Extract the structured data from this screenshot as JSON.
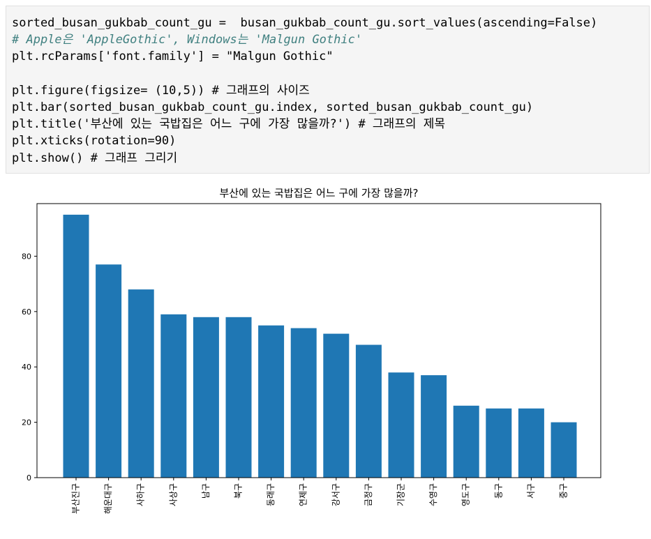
{
  "code_lines": [
    "sorted_busan_gukbab_count_gu =  busan_gukbab_count_gu.sort_values(ascending=False)",
    "# Apple은 'AppleGothic', Windows는 'Malgun Gothic'",
    "plt.rcParams['font.family'] = \"Malgun Gothic\"",
    "",
    "plt.figure(figsize= (10,5)) # 그래프의 사이즈",
    "plt.bar(sorted_busan_gukbab_count_gu.index, sorted_busan_gukbab_count_gu)",
    "plt.title('부산에 있는 국밥집은 어느 구에 가장 많을까?') # 그래프의 제목",
    "plt.xticks(rotation=90)",
    "plt.show() # 그래프 그리기"
  ],
  "chart_data": {
    "type": "bar",
    "title": "부산에 있는 국밥집은 어느 구에 가장 많을까?",
    "categories": [
      "부산진구",
      "해운대구",
      "사하구",
      "사상구",
      "남구",
      "북구",
      "동래구",
      "연제구",
      "강서구",
      "금정구",
      "기장군",
      "수영구",
      "영도구",
      "동구",
      "서구",
      "중구"
    ],
    "values": [
      95,
      77,
      68,
      59,
      58,
      58,
      55,
      54,
      52,
      48,
      38,
      37,
      26,
      25,
      25,
      20
    ],
    "ylim": [
      0,
      99
    ],
    "yticks": [
      0,
      20,
      40,
      60,
      80
    ],
    "xtick_rotation": 90,
    "bar_color": "#1f77b4",
    "grid": false,
    "legend": "none"
  }
}
